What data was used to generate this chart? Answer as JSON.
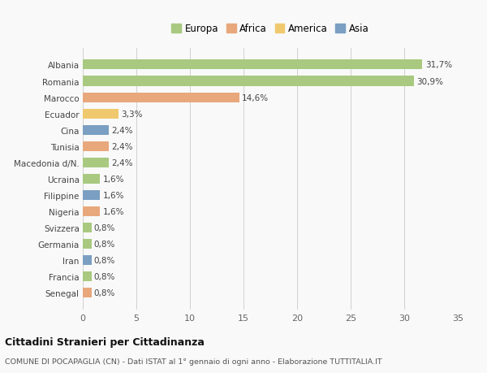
{
  "countries": [
    "Albania",
    "Romania",
    "Marocco",
    "Ecuador",
    "Cina",
    "Tunisia",
    "Macedonia d/N.",
    "Ucraina",
    "Filippine",
    "Nigeria",
    "Svizzera",
    "Germania",
    "Iran",
    "Francia",
    "Senegal"
  ],
  "values": [
    31.7,
    30.9,
    14.6,
    3.3,
    2.4,
    2.4,
    2.4,
    1.6,
    1.6,
    1.6,
    0.8,
    0.8,
    0.8,
    0.8,
    0.8
  ],
  "labels": [
    "31,7%",
    "30,9%",
    "14,6%",
    "3,3%",
    "2,4%",
    "2,4%",
    "2,4%",
    "1,6%",
    "1,6%",
    "1,6%",
    "0,8%",
    "0,8%",
    "0,8%",
    "0,8%",
    "0,8%"
  ],
  "continents": [
    "Europa",
    "Europa",
    "Africa",
    "America",
    "Asia",
    "Africa",
    "Europa",
    "Europa",
    "Asia",
    "Africa",
    "Europa",
    "Europa",
    "Asia",
    "Europa",
    "Africa"
  ],
  "colors": {
    "Europa": "#a8c97f",
    "Africa": "#e8a87c",
    "America": "#f0c96e",
    "Asia": "#7a9fc2"
  },
  "legend_order": [
    "Europa",
    "Africa",
    "America",
    "Asia"
  ],
  "title": "Cittadini Stranieri per Cittadinanza",
  "subtitle": "COMUNE DI POCAPAGLIA (CN) - Dati ISTAT al 1° gennaio di ogni anno - Elaborazione TUTTITALIA.IT",
  "xlim": [
    0,
    35
  ],
  "xticks": [
    0,
    5,
    10,
    15,
    20,
    25,
    30,
    35
  ],
  "bg_color": "#f9f9f9",
  "grid_color": "#d0d0d0"
}
